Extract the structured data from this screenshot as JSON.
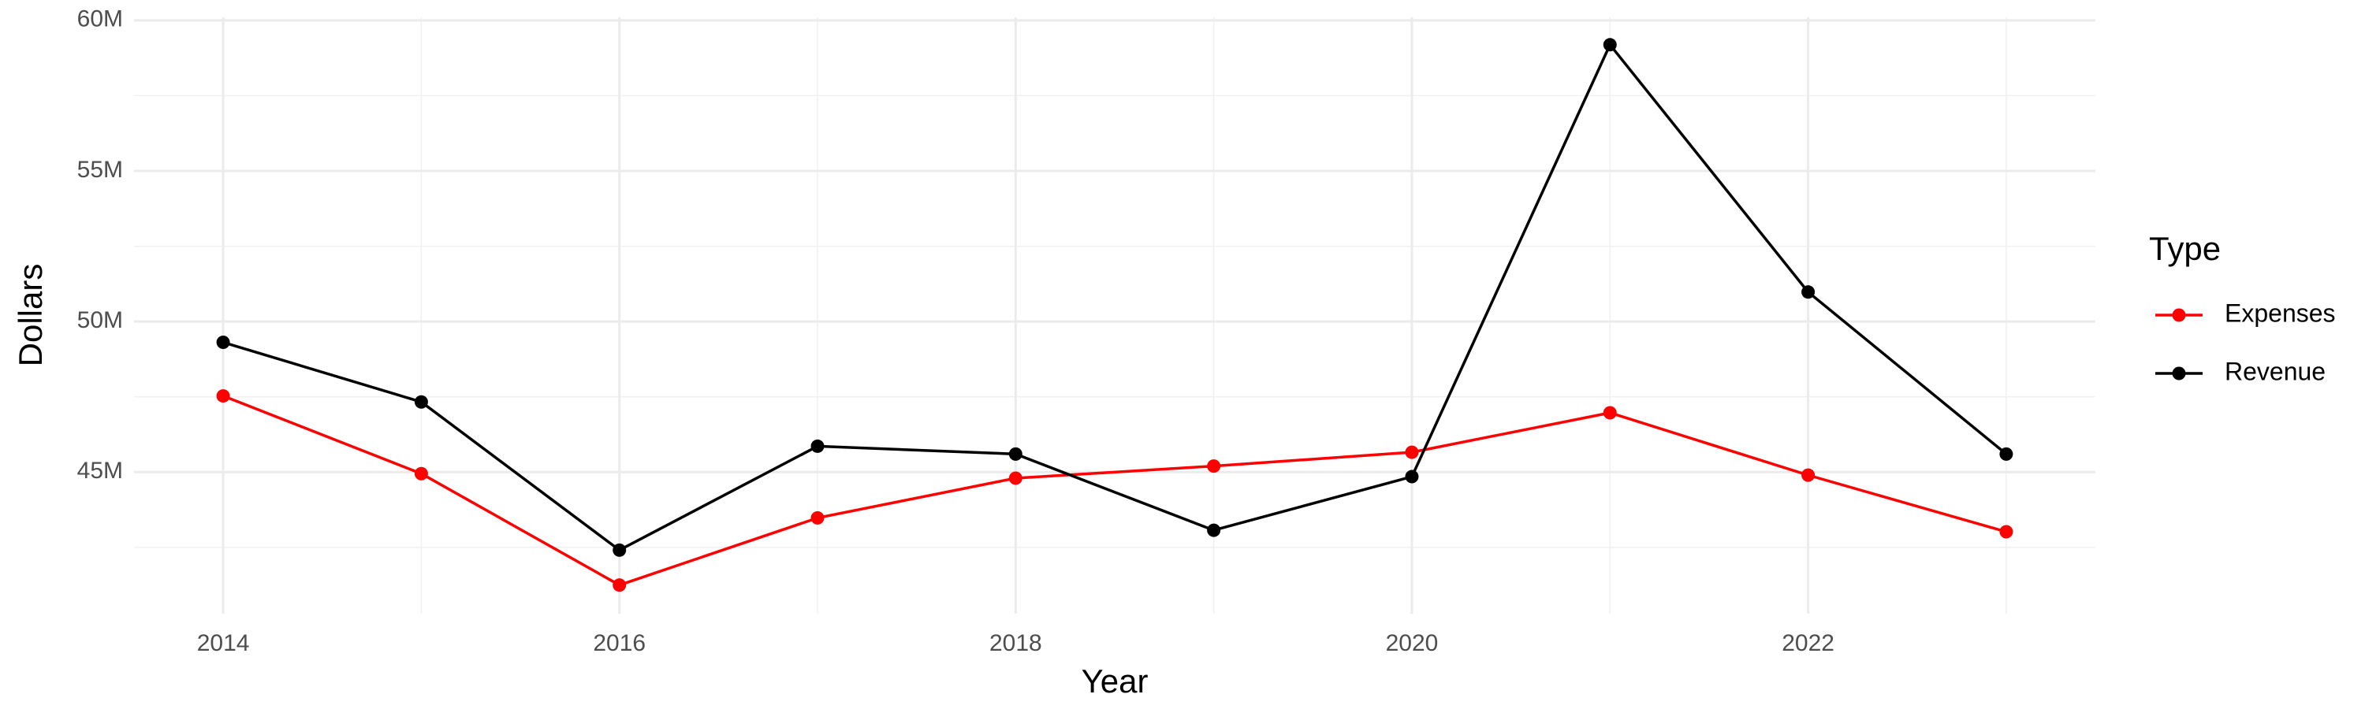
{
  "chart_data": {
    "type": "line",
    "x_label": "Year",
    "y_label": "Dollars",
    "legend_title": "Type",
    "x": [
      2014,
      2015,
      2016,
      2017,
      2018,
      2019,
      2020,
      2021,
      2022,
      2023
    ],
    "series": [
      {
        "name": "Expenses",
        "color": "#ff0000",
        "values": [
          47530000,
          44950000,
          41250000,
          43480000,
          44800000,
          45200000,
          45660000,
          46970000,
          44900000,
          43020000
        ]
      },
      {
        "name": "Revenue",
        "color": "#000000",
        "values": [
          49310000,
          47330000,
          42410000,
          45860000,
          45600000,
          43070000,
          44850000,
          59190000,
          50980000,
          45600000
        ]
      }
    ],
    "xlim": [
      2013.55,
      2023.45
    ],
    "ylim": [
      40300000,
      60100000
    ],
    "xticks": [
      2014,
      2016,
      2018,
      2020,
      2022
    ],
    "yticks": [
      {
        "value": 45000000,
        "label": "45M"
      },
      {
        "value": 50000000,
        "label": "50M"
      },
      {
        "value": 55000000,
        "label": "55M"
      },
      {
        "value": 60000000,
        "label": "60M"
      }
    ],
    "grid": true,
    "legend_position": "right"
  }
}
